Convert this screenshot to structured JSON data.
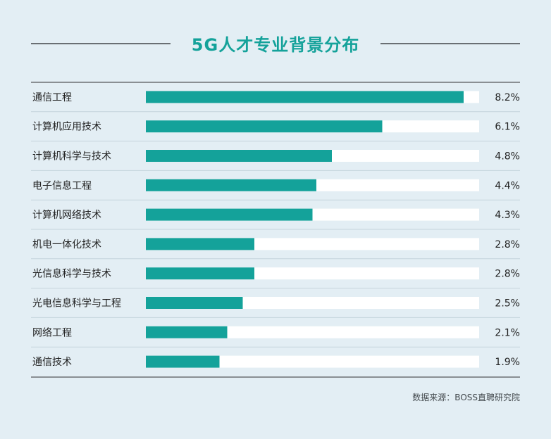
{
  "chart_data": {
    "type": "bar",
    "orientation": "horizontal",
    "title": "5G人才专业背景分布",
    "categories": [
      "通信工程",
      "计算机应用技术",
      "计算机科学与技术",
      "电子信息工程",
      "计算机网络技术",
      "机电一体化技术",
      "光信息科学与技术",
      "光电信息科学与工程",
      "网络工程",
      "通信技术"
    ],
    "values": [
      8.2,
      6.1,
      4.8,
      4.4,
      4.3,
      2.8,
      2.8,
      2.5,
      2.1,
      1.9
    ],
    "value_labels": [
      "8.2%",
      "6.1%",
      "4.8%",
      "4.4%",
      "4.3%",
      "2.8%",
      "2.8%",
      "2.5%",
      "2.1%",
      "1.9%"
    ],
    "xlim": [
      0,
      8.6
    ],
    "unit": "%",
    "grid": false,
    "source": "数据来源：BOSS直聘研究院"
  },
  "colors": {
    "bar": "#14a29a",
    "track": "#ffffff",
    "title": "#14a29a",
    "separator": "#c5d4dc",
    "text": "#222222"
  }
}
